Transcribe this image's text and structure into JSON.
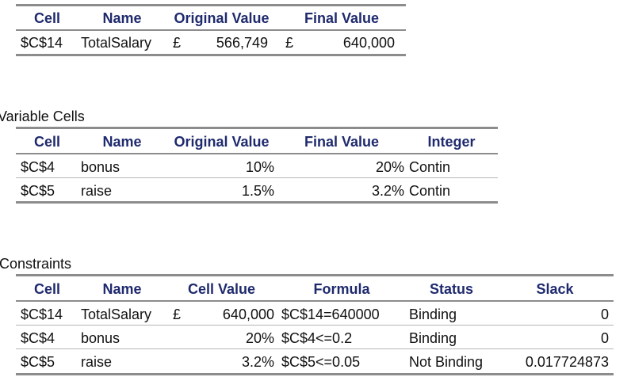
{
  "objective": {
    "headers": [
      "Cell",
      "Name",
      "Original Value",
      "Final Value"
    ],
    "row": {
      "cell": "$C$14",
      "name": "TotalSalary",
      "orig_cur": "£",
      "orig_val": "566,749",
      "final_cur": "£",
      "final_val": "640,000"
    }
  },
  "variable": {
    "title": "Variable Cells",
    "headers": [
      "Cell",
      "Name",
      "Original Value",
      "Final Value",
      "Integer"
    ],
    "rows": [
      {
        "cell": "$C$4",
        "name": "bonus",
        "orig": "10%",
        "final": "20%",
        "integer": "Contin"
      },
      {
        "cell": "$C$5",
        "name": "raise",
        "orig": "1.5%",
        "final": "3.2%",
        "integer": "Contin"
      }
    ]
  },
  "constraints": {
    "title": "Constraints",
    "headers": [
      "Cell",
      "Name",
      "Cell Value",
      "Formula",
      "Status",
      "Slack"
    ],
    "rows": [
      {
        "cell": "$C$14",
        "name": "TotalSalary",
        "cur": "£",
        "value": "640,000",
        "formula": "$C$14=640000",
        "status": "Binding",
        "slack": "0"
      },
      {
        "cell": "$C$4",
        "name": "bonus",
        "cur": "",
        "value": "20%",
        "formula": "$C$4<=0.2",
        "status": "Binding",
        "slack": "0"
      },
      {
        "cell": "$C$5",
        "name": "raise",
        "cur": "",
        "value": "3.2%",
        "formula": "$C$5<=0.05",
        "status": "Not Binding",
        "slack": "0.017724873"
      }
    ]
  },
  "colors": {
    "header_text": "#1f2a6e",
    "rule": "#8c8c8c"
  }
}
